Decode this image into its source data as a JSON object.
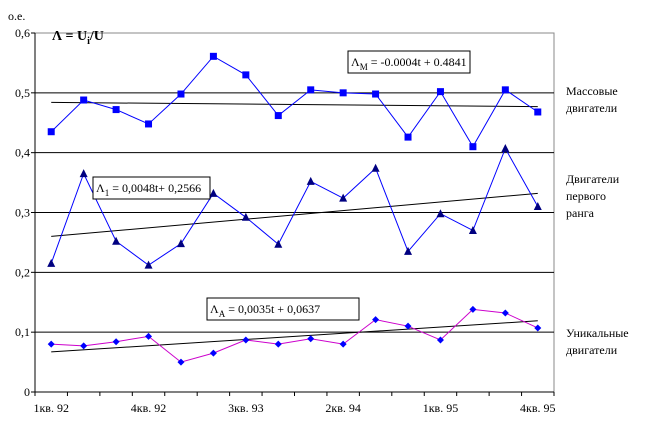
{
  "chart_data": {
    "type": "line",
    "y_unit": "о.е.",
    "formula": {
      "main": "Λ = U",
      "sub": "i",
      "tail": "/U"
    },
    "ylim": [
      0,
      0.6
    ],
    "yticks": [
      "0",
      "0,1",
      "0,2",
      "0,3",
      "0,4",
      "0,5",
      "0,6"
    ],
    "xticks": [
      "1кв. 92",
      "4кв. 92",
      "3кв. 93",
      "2кв. 94",
      "1кв. 95",
      "4кв. 95"
    ],
    "grid": {
      "horizontal": true,
      "vertical": false
    },
    "series": [
      {
        "key": "mass",
        "label_lines": [
          "Массовые",
          "двигатели"
        ],
        "color": "#0000ff",
        "line_color": "#0000ff",
        "marker": "square",
        "values": [
          0.435,
          0.488,
          0.472,
          0.448,
          0.498,
          0.561,
          0.53,
          0.462,
          0.505,
          0.5,
          0.498,
          0.426,
          0.502,
          0.41,
          0.505,
          0.468
        ],
        "trend": {
          "start": 0.484,
          "end": 0.477
        },
        "equation": {
          "pre": "Λ",
          "sub": "M",
          "post": " = -0.0004t + 0.4841"
        }
      },
      {
        "key": "first",
        "label_lines": [
          "Двигатели",
          "первого",
          "ранга"
        ],
        "color": "#000080",
        "line_color": "#0000ff",
        "marker": "triangle",
        "values": [
          0.215,
          0.365,
          0.252,
          0.212,
          0.248,
          0.332,
          0.292,
          0.247,
          0.352,
          0.324,
          0.374,
          0.235,
          0.298,
          0.27,
          0.407,
          0.31
        ],
        "trend": {
          "start": 0.26,
          "end": 0.332
        },
        "equation": {
          "pre": "Λ",
          "sub": "1",
          "post": " = 0,0048t+ 0,2566"
        }
      },
      {
        "key": "unique",
        "label_lines": [
          "Уникальные",
          "двигатели"
        ],
        "color": "#0000ff",
        "line_color": "#cc00cc",
        "marker": "diamond",
        "values": [
          0.08,
          0.077,
          0.084,
          0.093,
          0.05,
          0.065,
          0.087,
          0.08,
          0.089,
          0.08,
          0.121,
          0.11,
          0.087,
          0.138,
          0.132,
          0.107
        ],
        "trend": {
          "start": 0.067,
          "end": 0.119
        },
        "equation": {
          "pre": "Λ",
          "sub": "А",
          "post": " = 0,0035t + 0,0637"
        }
      }
    ]
  }
}
